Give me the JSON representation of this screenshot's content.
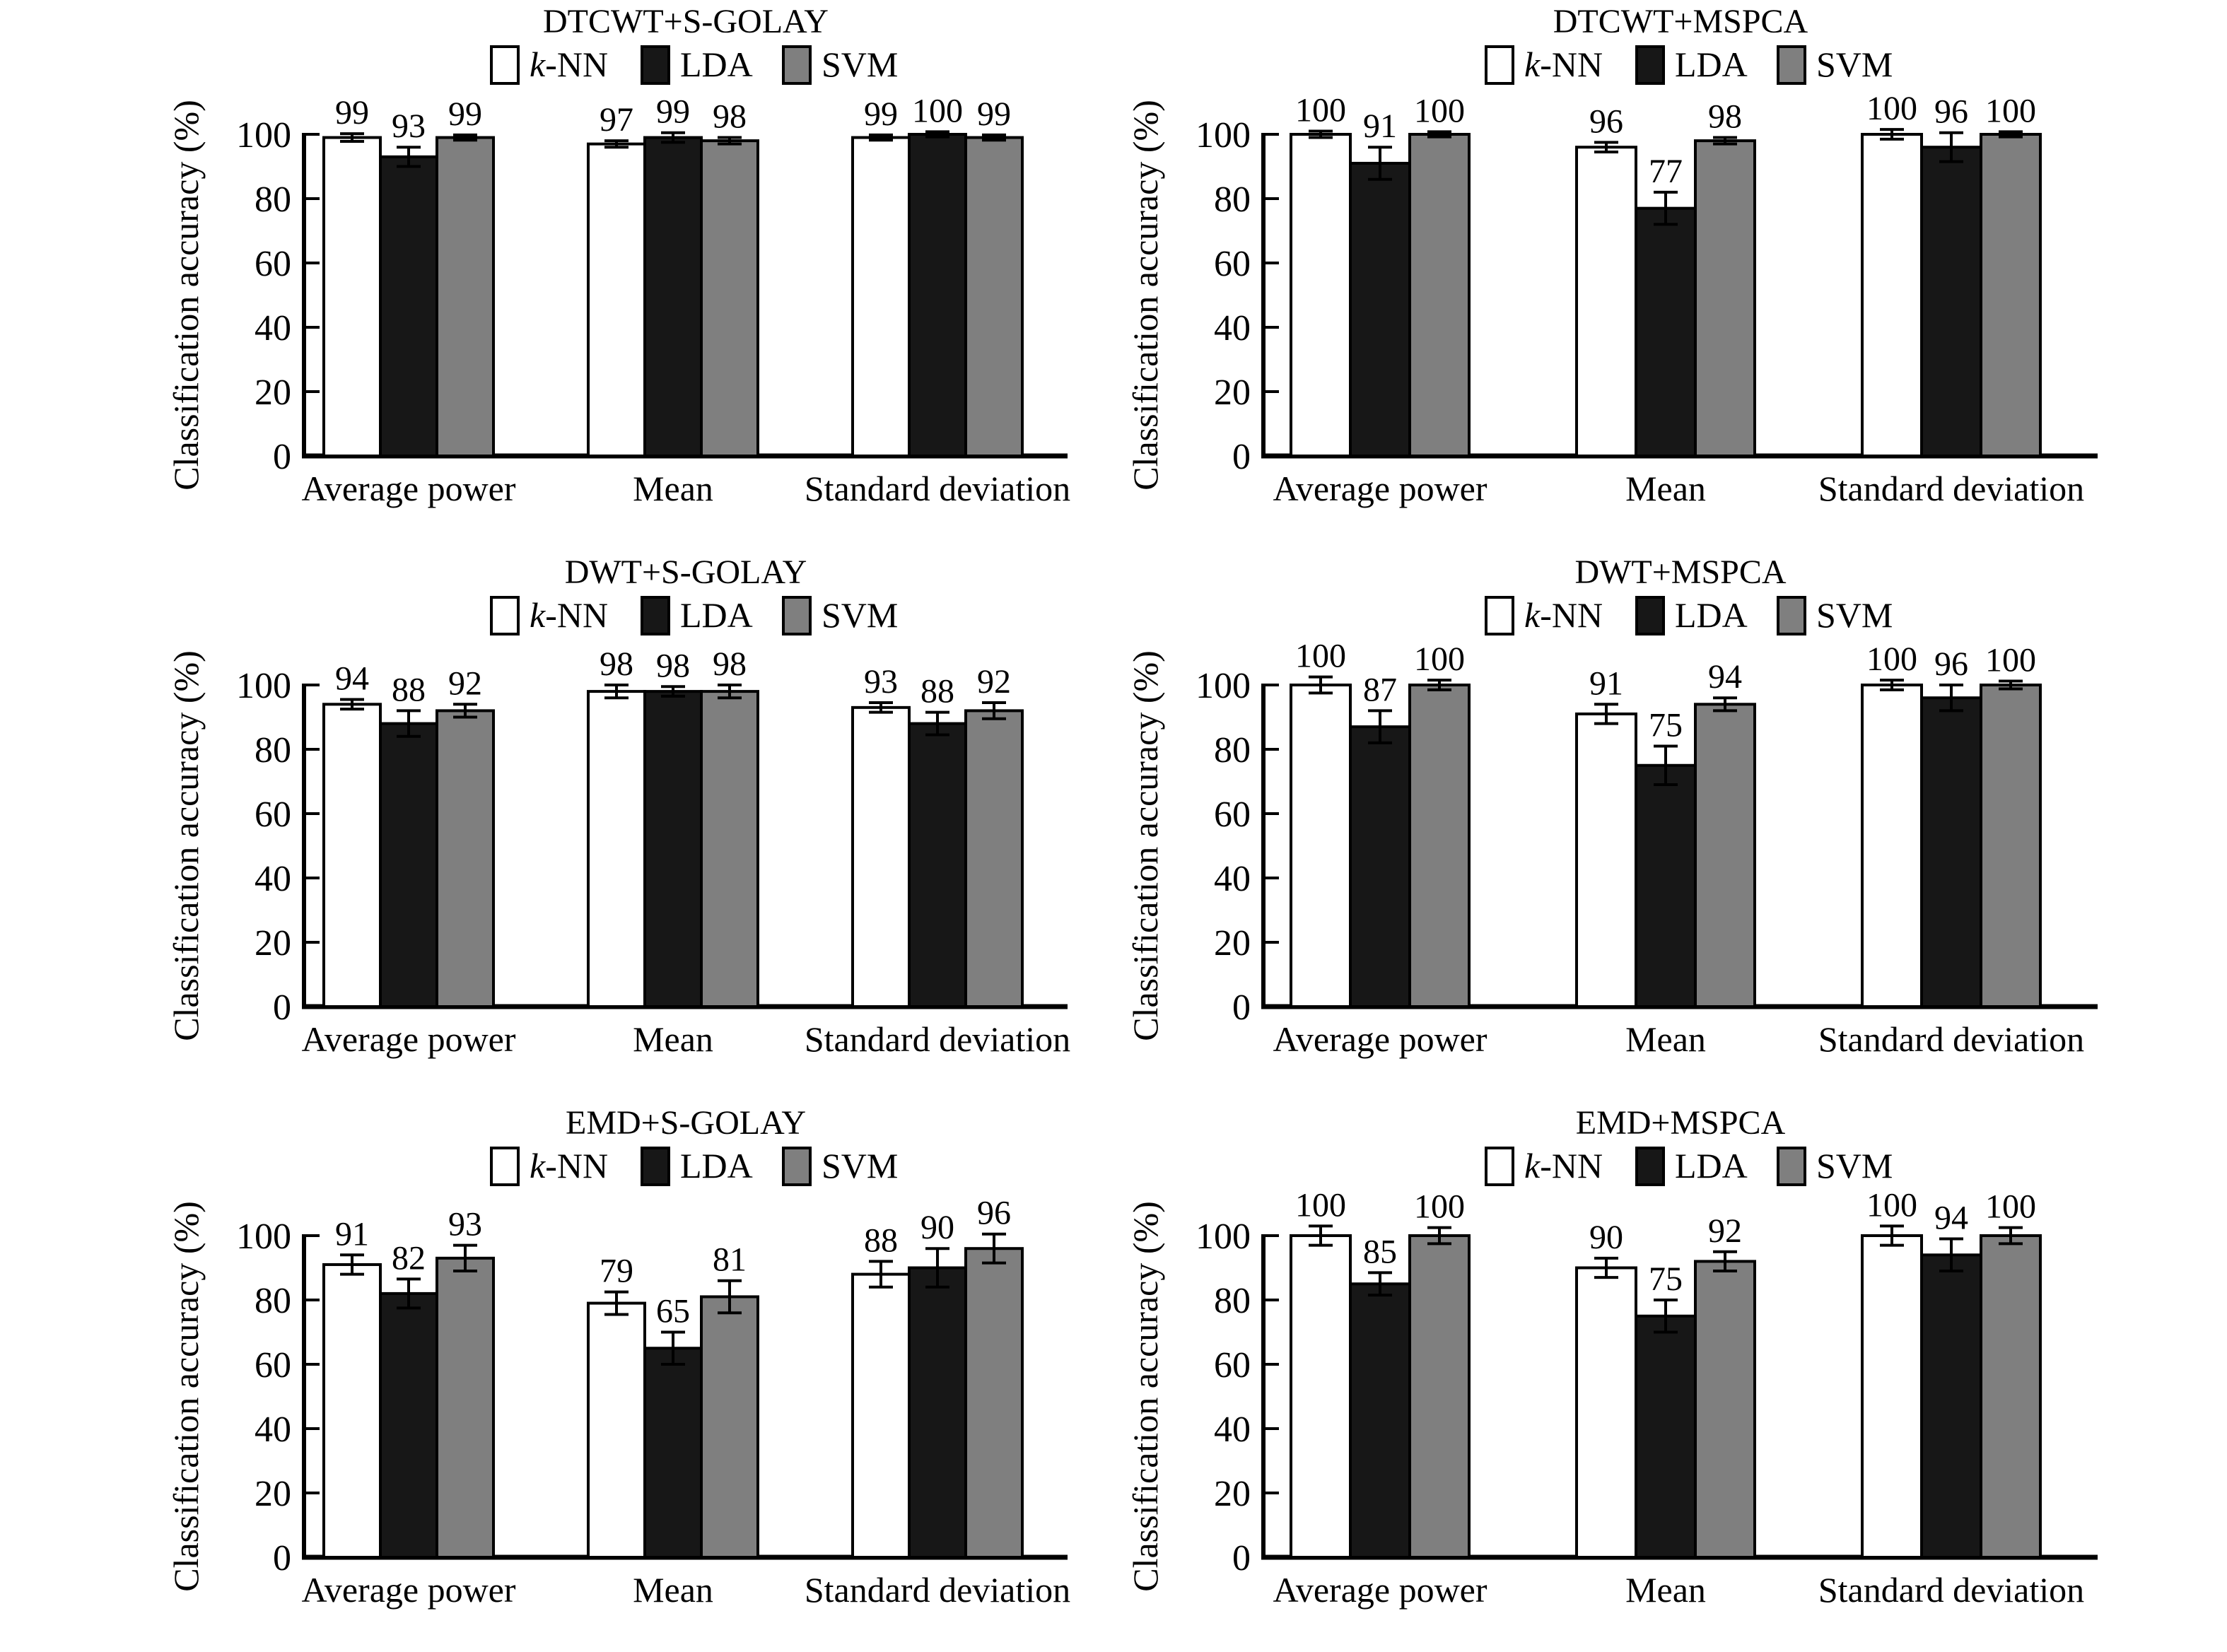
{
  "figure": {
    "background": "#ffffff",
    "text_color": "#000000",
    "axis_color": "#000000"
  },
  "chart_data": [
    {
      "type": "bar",
      "title": "DTCWT+S-GOLAY",
      "ylabel": "Classification accuracy (%)",
      "categories": [
        "Average power",
        "Mean",
        "Standard deviation"
      ],
      "yticks": [
        0,
        20,
        40,
        60,
        80,
        100
      ],
      "ylim": [
        0,
        100
      ],
      "grid": false,
      "legend_position": "top",
      "error_bars": true,
      "bar_value_labels": true,
      "series": [
        {
          "name": "k-NN",
          "color": "#ffffff",
          "values": [
            99,
            97,
            99
          ],
          "errors": [
            1.2,
            1.0,
            0.8
          ]
        },
        {
          "name": "LDA",
          "color": "#171717",
          "values": [
            93,
            99,
            100
          ],
          "errors": [
            3.0,
            1.5,
            0.8
          ]
        },
        {
          "name": "SVM",
          "color": "#7f7f7f",
          "values": [
            99,
            98,
            99
          ],
          "errors": [
            0.8,
            1.0,
            0.8
          ]
        }
      ]
    },
    {
      "type": "bar",
      "title": "DTCWT+MSPCA",
      "ylabel": "Classification accuracy (%)",
      "categories": [
        "Average power",
        "Mean",
        "Standard deviation"
      ],
      "yticks": [
        0,
        20,
        40,
        60,
        80,
        100
      ],
      "ylim": [
        0,
        100
      ],
      "grid": false,
      "legend_position": "top",
      "error_bars": true,
      "bar_value_labels": true,
      "series": [
        {
          "name": "k-NN",
          "color": "#ffffff",
          "values": [
            100,
            96,
            100
          ],
          "errors": [
            1.0,
            1.5,
            1.5
          ]
        },
        {
          "name": "LDA",
          "color": "#171717",
          "values": [
            91,
            77,
            96
          ],
          "errors": [
            5.0,
            5.0,
            4.5
          ]
        },
        {
          "name": "SVM",
          "color": "#7f7f7f",
          "values": [
            100,
            98,
            100
          ],
          "errors": [
            0.8,
            1.0,
            0.8
          ]
        }
      ]
    },
    {
      "type": "bar",
      "title": "DWT+S-GOLAY",
      "ylabel": "Classification accuracy (%)",
      "categories": [
        "Average power",
        "Mean",
        "Standard deviation"
      ],
      "yticks": [
        0,
        20,
        40,
        60,
        80,
        100
      ],
      "ylim": [
        0,
        100
      ],
      "grid": false,
      "legend_position": "top",
      "error_bars": true,
      "bar_value_labels": true,
      "series": [
        {
          "name": "k-NN",
          "color": "#ffffff",
          "values": [
            94,
            98,
            93
          ],
          "errors": [
            1.5,
            2.0,
            1.5
          ]
        },
        {
          "name": "LDA",
          "color": "#171717",
          "values": [
            88,
            98,
            88
          ],
          "errors": [
            4.0,
            1.5,
            3.5
          ]
        },
        {
          "name": "SVM",
          "color": "#7f7f7f",
          "values": [
            92,
            98,
            92
          ],
          "errors": [
            2.0,
            2.0,
            2.5
          ]
        }
      ]
    },
    {
      "type": "bar",
      "title": "DWT+MSPCA",
      "ylabel": "Classification accuracy (%)",
      "categories": [
        "Average power",
        "Mean",
        "Standard deviation"
      ],
      "yticks": [
        0,
        20,
        40,
        60,
        80,
        100
      ],
      "ylim": [
        0,
        100
      ],
      "grid": false,
      "legend_position": "top",
      "error_bars": true,
      "bar_value_labels": true,
      "series": [
        {
          "name": "k-NN",
          "color": "#ffffff",
          "values": [
            100,
            91,
            100
          ],
          "errors": [
            2.5,
            3.0,
            1.5
          ]
        },
        {
          "name": "LDA",
          "color": "#171717",
          "values": [
            87,
            75,
            96
          ],
          "errors": [
            5.0,
            6.0,
            4.0
          ]
        },
        {
          "name": "SVM",
          "color": "#7f7f7f",
          "values": [
            100,
            94,
            100
          ],
          "errors": [
            1.5,
            2.0,
            1.2
          ]
        }
      ]
    },
    {
      "type": "bar",
      "title": "EMD+S-GOLAY",
      "ylabel": "Classification accuracy (%)",
      "categories": [
        "Average power",
        "Mean",
        "Standard deviation"
      ],
      "yticks": [
        0,
        20,
        40,
        60,
        80,
        100
      ],
      "ylim": [
        0,
        100
      ],
      "grid": false,
      "legend_position": "top",
      "error_bars": true,
      "bar_value_labels": true,
      "series": [
        {
          "name": "k-NN",
          "color": "#ffffff",
          "values": [
            91,
            79,
            88
          ],
          "errors": [
            3.0,
            3.5,
            4.0
          ]
        },
        {
          "name": "LDA",
          "color": "#171717",
          "values": [
            82,
            65,
            90
          ],
          "errors": [
            4.5,
            5.0,
            6.0
          ]
        },
        {
          "name": "SVM",
          "color": "#7f7f7f",
          "values": [
            93,
            81,
            96
          ],
          "errors": [
            4.0,
            5.0,
            4.5
          ]
        }
      ]
    },
    {
      "type": "bar",
      "title": "EMD+MSPCA",
      "ylabel": "Classification accuracy (%)",
      "categories": [
        "Average power",
        "Mean",
        "Standard deviation"
      ],
      "yticks": [
        0,
        20,
        40,
        60,
        80,
        100
      ],
      "ylim": [
        0,
        100
      ],
      "grid": false,
      "legend_position": "top",
      "error_bars": true,
      "bar_value_labels": true,
      "series": [
        {
          "name": "k-NN",
          "color": "#ffffff",
          "values": [
            100,
            90,
            100
          ],
          "errors": [
            3.0,
            3.0,
            3.0
          ]
        },
        {
          "name": "LDA",
          "color": "#171717",
          "values": [
            85,
            75,
            94
          ],
          "errors": [
            3.5,
            5.0,
            5.0
          ]
        },
        {
          "name": "SVM",
          "color": "#7f7f7f",
          "values": [
            100,
            92,
            100
          ],
          "errors": [
            2.5,
            3.0,
            2.5
          ]
        }
      ]
    }
  ]
}
